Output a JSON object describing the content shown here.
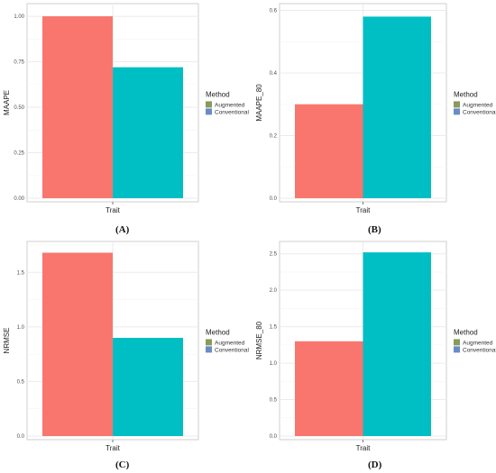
{
  "chart_data": [
    {
      "type": "bar",
      "panel_label": "(A)",
      "categories": [
        ""
      ],
      "xlabel": "Trait",
      "ylabel": "MAAPE",
      "yticks": [
        "0.00",
        "0.25",
        "0.50",
        "0.75",
        "1.00"
      ],
      "ylim": [
        0,
        1.05
      ],
      "grid": true,
      "legend": {
        "title": "Method",
        "placement": "right",
        "entries": [
          "Augmented",
          "Conventional"
        ]
      },
      "series": [
        {
          "name": "Augmented",
          "color": "#F8766D",
          "values": [
            1.0
          ]
        },
        {
          "name": "Conventional",
          "color": "#00BFC4",
          "values": [
            0.72
          ]
        }
      ]
    },
    {
      "type": "bar",
      "panel_label": "(B)",
      "categories": [
        ""
      ],
      "xlabel": "Trait",
      "ylabel": "MAAPE_80",
      "yticks": [
        "0.0",
        "0.2",
        "0.4",
        "0.6"
      ],
      "ylim": [
        0,
        0.61
      ],
      "grid": true,
      "legend": {
        "title": "Method",
        "placement": "right",
        "entries": [
          "Augmented",
          "Conventional"
        ]
      },
      "series": [
        {
          "name": "Augmented",
          "color": "#F8766D",
          "values": [
            0.3
          ]
        },
        {
          "name": "Conventional",
          "color": "#00BFC4",
          "values": [
            0.58
          ]
        }
      ]
    },
    {
      "type": "bar",
      "panel_label": "(C)",
      "categories": [
        ""
      ],
      "xlabel": "Trait",
      "ylabel": "NRMSE",
      "yticks": [
        "0.0",
        "0.5",
        "1.0",
        "1.5"
      ],
      "ylim": [
        0,
        1.75
      ],
      "grid": true,
      "legend": {
        "title": "Method",
        "placement": "right",
        "entries": [
          "Augmented",
          "Conventional"
        ]
      },
      "series": [
        {
          "name": "Augmented",
          "color": "#F8766D",
          "values": [
            1.68
          ]
        },
        {
          "name": "Conventional",
          "color": "#00BFC4",
          "values": [
            0.9
          ]
        }
      ]
    },
    {
      "type": "bar",
      "panel_label": "(D)",
      "categories": [
        ""
      ],
      "xlabel": "Trait",
      "ylabel": "NRMSE_80",
      "yticks": [
        "0.0",
        "0.5",
        "1.0",
        "1.5",
        "2.0",
        "2.5"
      ],
      "ylim": [
        0,
        2.62
      ],
      "grid": true,
      "legend": {
        "title": "Method",
        "placement": "right",
        "entries": [
          "Augmented",
          "Conventional"
        ]
      },
      "series": [
        {
          "name": "Augmented",
          "color": "#F8766D",
          "values": [
            1.3
          ]
        },
        {
          "name": "Conventional",
          "color": "#00BFC4",
          "values": [
            2.52
          ]
        }
      ]
    }
  ],
  "legend_swatch_colors": {
    "Augmented": "#8A9A5B",
    "Conventional": "#6A8CC6"
  }
}
